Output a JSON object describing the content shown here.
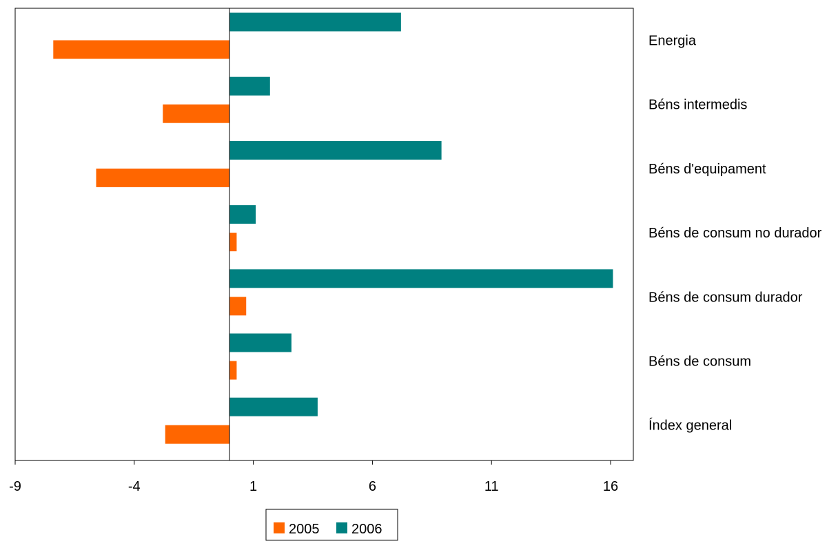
{
  "chart_data": {
    "type": "bar",
    "orientation": "horizontal",
    "categories": [
      "Energia",
      "Béns intermedis",
      "Béns d'equipament",
      "Béns de consum no durador",
      "Béns de consum durador",
      "Béns de consum",
      "Índex general"
    ],
    "series": [
      {
        "name": "2005",
        "color": "#ff6600",
        "values": [
          -7.4,
          -2.8,
          -5.6,
          0.3,
          0.7,
          0.3,
          -2.7
        ]
      },
      {
        "name": "2006",
        "color": "#008080",
        "values": [
          7.2,
          1.7,
          8.9,
          1.1,
          16.1,
          2.6,
          3.7
        ]
      }
    ],
    "xlim": [
      -9,
      17
    ],
    "xticks": [
      -9,
      -4,
      1,
      6,
      11,
      16
    ],
    "baseline": 0,
    "legend": {
      "position": "bottom",
      "entries": [
        "2005",
        "2006"
      ]
    },
    "grid": false,
    "title": "",
    "xlabel": "",
    "ylabel": ""
  }
}
